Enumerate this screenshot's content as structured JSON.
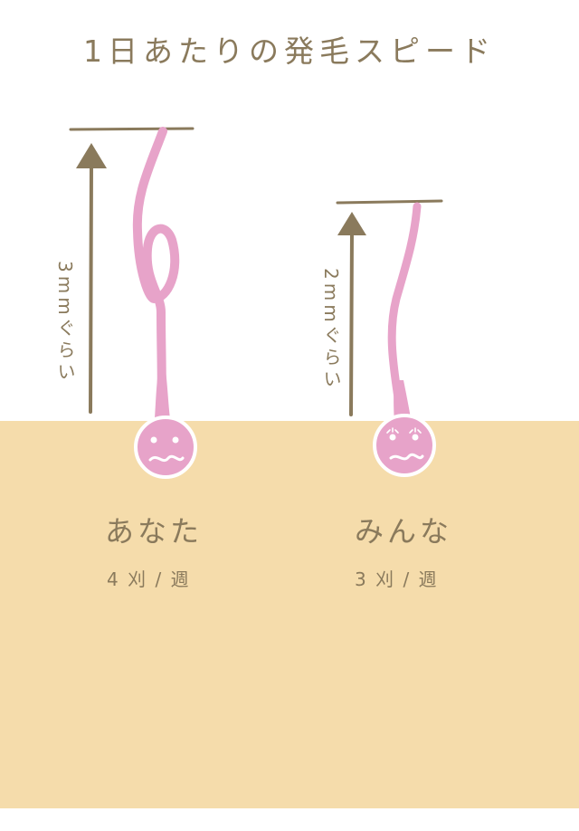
{
  "title": "1日あたりの発毛スピード",
  "colors": {
    "ground": "#f5dcab",
    "text": "#8a7a5c",
    "arrow": "#8a7a5c",
    "hair": "#e7a3c9",
    "hair_outline": "#ffffff"
  },
  "you": {
    "growth_label": "3mmぐらい",
    "name": "あなた",
    "frequency": "4 刈 / 週"
  },
  "everyone": {
    "growth_label": "2mmぐらい",
    "name": "みんな",
    "frequency": "3 刈 / 週"
  }
}
